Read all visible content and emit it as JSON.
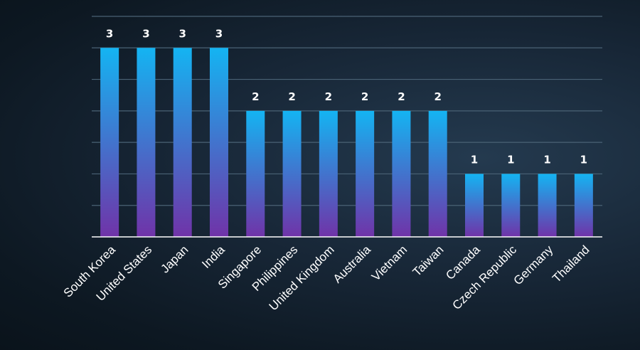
{
  "chart_data": {
    "type": "bar",
    "title": "",
    "xlabel": "",
    "ylabel": "",
    "categories": [
      "South Korea",
      "United States",
      "Japan",
      "India",
      "Singapore",
      "Philippines",
      "United Kingdom",
      "Australia",
      "Vietnam",
      "Taiwan",
      "Canada",
      "Czech Republic",
      "Germany",
      "Thailand"
    ],
    "values": [
      3,
      3,
      3,
      3,
      2,
      2,
      2,
      2,
      2,
      2,
      1,
      1,
      1,
      1
    ],
    "ylim": [
      0,
      3.5
    ],
    "y_gridlines": [
      0.5,
      1,
      1.5,
      2,
      2.5,
      3,
      3.5
    ],
    "grid": true,
    "data_labels": true,
    "legend": "none",
    "colors": {
      "bar_top": "#14b4f2",
      "bar_bottom": "#7033a8",
      "grid": "#4a6275",
      "axis": "#ffffff",
      "text": "#ffffff"
    }
  }
}
